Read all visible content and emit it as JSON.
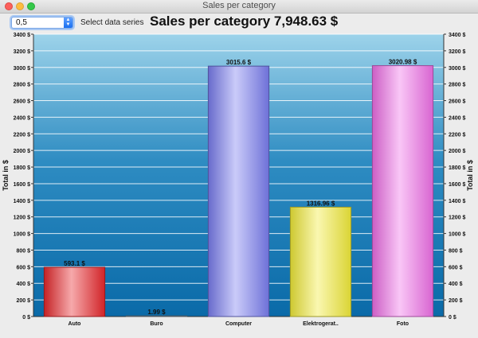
{
  "window": {
    "title": "Sales per category"
  },
  "controls": {
    "series_select": {
      "value": "0,5"
    },
    "series_label": "Select data series"
  },
  "header": {
    "title": "Sales per category 7,948.63 $"
  },
  "colors": {
    "plot_top": "#9dd3ea",
    "plot_bottom": "#0a6aa8",
    "Auto": "#e8282c",
    "Buro": "#7a8a9a",
    "Computer": "#7a7ef0",
    "Elektrogeraete": "#f2ec3a",
    "Foto": "#f070e8"
  },
  "chart_data": {
    "type": "bar",
    "title": "Sales per category 7,948.63 $",
    "ylabel": "Total in $",
    "ylim": [
      0,
      3400
    ],
    "yticks": [
      0,
      200,
      400,
      600,
      800,
      1000,
      1200,
      1400,
      1600,
      1800,
      2000,
      2200,
      2400,
      2600,
      2800,
      3000,
      3200,
      3400
    ],
    "ytick_suffix": " $",
    "grid": true,
    "categories": [
      "Auto",
      "Buro",
      "Computer",
      "Elektrogerat..",
      "Foto"
    ],
    "values": [
      593.1,
      1.99,
      3015.6,
      1316.96,
      3020.98
    ],
    "data_labels": [
      "593.1 $",
      "1.99 $",
      "3015.6 $",
      "1316.96 $",
      "3020.98 $"
    ],
    "bar_colors": [
      "#e8282c",
      "#7a8a9a",
      "#7a7ef0",
      "#f2ec3a",
      "#f070e8"
    ]
  }
}
